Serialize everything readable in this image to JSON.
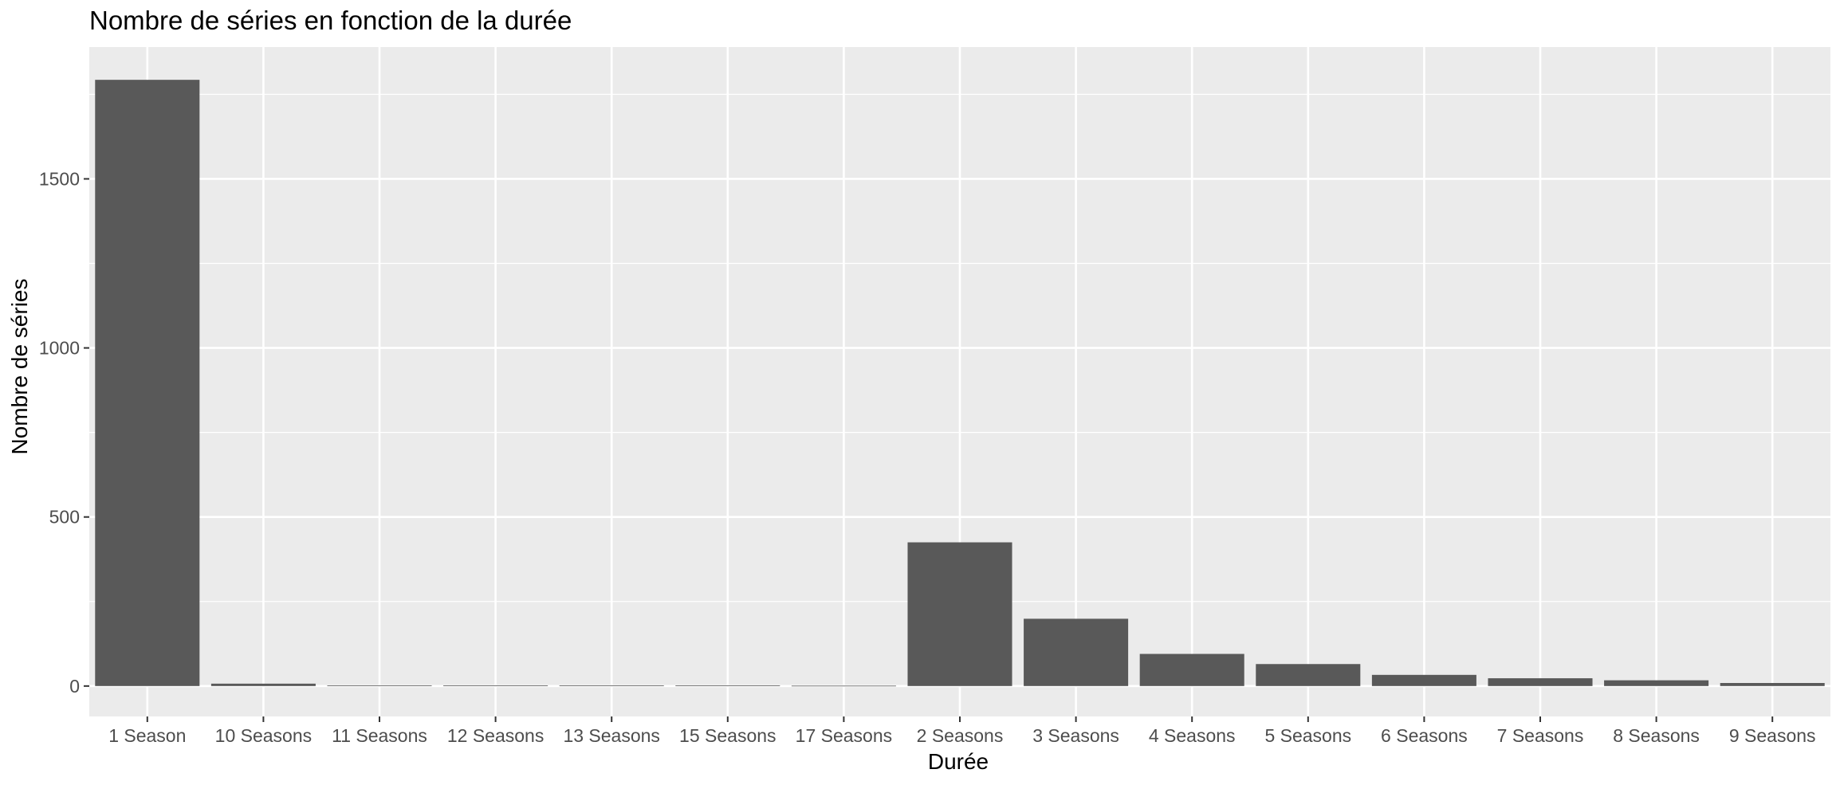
{
  "chart_data": {
    "type": "bar",
    "title": "Nombre de séries en fonction de la durée",
    "xlabel": "Durée",
    "ylabel": "Nombre de séries",
    "categories": [
      "1 Season",
      "10 Seasons",
      "11 Seasons",
      "12 Seasons",
      "13 Seasons",
      "15 Seasons",
      "17 Seasons",
      "2 Seasons",
      "3 Seasons",
      "4 Seasons",
      "5 Seasons",
      "6 Seasons",
      "7 Seasons",
      "8 Seasons",
      "9 Seasons"
    ],
    "values": [
      1793,
      7,
      2,
      2,
      2,
      2,
      1,
      425,
      199,
      95,
      65,
      33,
      23,
      17,
      9
    ],
    "ylim": [
      -90,
      1890
    ],
    "yticks": [
      0,
      500,
      1000,
      1500
    ],
    "ytick_labels": [
      "0",
      "500",
      "1000",
      "1500"
    ],
    "grid": true,
    "legend": "none",
    "colors": {
      "bar": "#595959",
      "panel": "#ebebeb",
      "grid": "#ffffff",
      "tick": "#333333"
    }
  }
}
